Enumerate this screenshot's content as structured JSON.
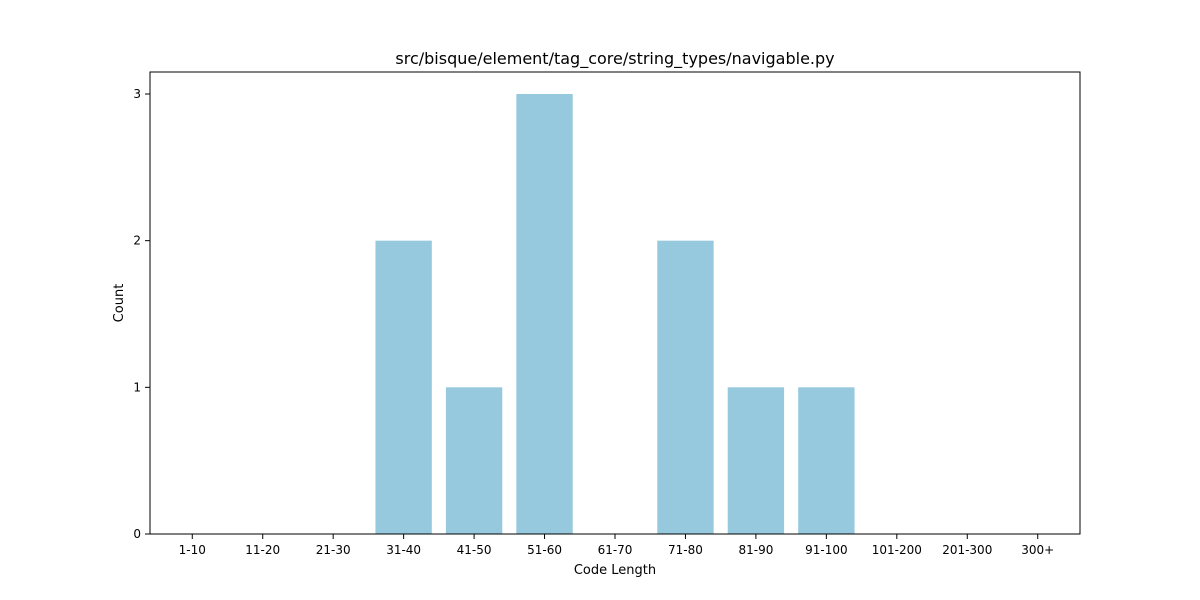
{
  "chart_data": {
    "type": "bar",
    "title": "src/bisque/element/tag_core/string_types/navigable.py",
    "xlabel": "Code Length",
    "ylabel": "Count",
    "categories": [
      "1-10",
      "11-20",
      "21-30",
      "31-40",
      "41-50",
      "51-60",
      "61-70",
      "71-80",
      "81-90",
      "91-100",
      "101-200",
      "201-300",
      "300+"
    ],
    "values": [
      0,
      0,
      0,
      2,
      1,
      3,
      0,
      2,
      1,
      1,
      0,
      0,
      0
    ],
    "ylim": [
      0,
      3.15
    ],
    "yticks": [
      0,
      1,
      2,
      3
    ],
    "grid": false,
    "bar_color": "#96c9dd"
  }
}
